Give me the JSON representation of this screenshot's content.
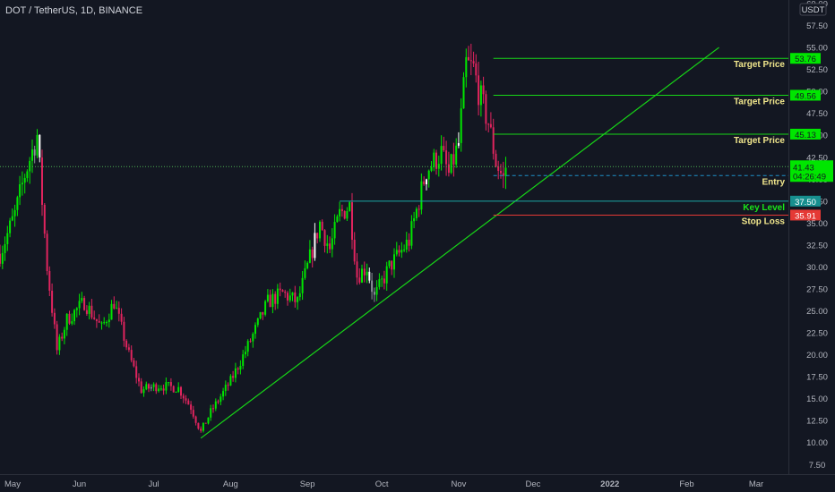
{
  "header": {
    "symbol_title": "DOT / TetherUS, 1D, BINANCE"
  },
  "colors": {
    "background": "#131722",
    "up": "#00e600",
    "down": "#e0245e",
    "white_candle": "#ffffff",
    "grey_candle": "#8a8f98",
    "axis_text": "#b2b5be",
    "target_line": "#17d617",
    "entry_line": "#1e90c8",
    "key_level_line": "#1ba5a5",
    "stop_loss_line": "#e53935",
    "trendline": "#17d617",
    "price_line": "#4caf50"
  },
  "chart_data": {
    "type": "candlestick",
    "title": "DOT / TetherUS, 1D, BINANCE",
    "y_axis_unit": "USDT",
    "ylim": [
      6.0,
      60.0
    ],
    "y_ticks": [
      7.5,
      10.0,
      12.5,
      15.0,
      17.5,
      20.0,
      22.5,
      25.0,
      27.5,
      30.0,
      32.5,
      35.0,
      37.5,
      40.0,
      42.5,
      45.0,
      47.5,
      50.0,
      52.5,
      55.0,
      57.5,
      60.0
    ],
    "y_tick_labels": [
      "7.50",
      "10.00",
      "12.50",
      "15.00",
      "17.50",
      "20.00",
      "22.50",
      "25.00",
      "27.50",
      "30.00",
      "32.50",
      "35.00",
      "37.50",
      "40.00",
      "42.50",
      "45.00",
      "47.50",
      "50.00",
      "52.50",
      "55.00",
      "57.50",
      "60.00"
    ],
    "xlim": [
      "2021-04-30",
      "2022-03-14"
    ],
    "x_ticks": [
      {
        "date": "2021-05-01",
        "label": "May"
      },
      {
        "date": "2021-06-01",
        "label": "Jun"
      },
      {
        "date": "2021-07-01",
        "label": "Jul"
      },
      {
        "date": "2021-08-01",
        "label": "Aug"
      },
      {
        "date": "2021-09-01",
        "label": "Sep"
      },
      {
        "date": "2021-10-01",
        "label": "Oct"
      },
      {
        "date": "2021-11-01",
        "label": "Nov"
      },
      {
        "date": "2021-12-01",
        "label": "Dec"
      },
      {
        "date": "2022-01-01",
        "label": "2022"
      },
      {
        "date": "2022-02-01",
        "label": "Feb"
      },
      {
        "date": "2022-03-01",
        "label": "Mar"
      }
    ],
    "price_path": [
      [
        "2021-04-30",
        31.5
      ],
      [
        "2021-05-06",
        36.0
      ],
      [
        "2021-05-10",
        40.5
      ],
      [
        "2021-05-15",
        45.0
      ],
      [
        "2021-05-19",
        30.0
      ],
      [
        "2021-05-23",
        20.5
      ],
      [
        "2021-05-27",
        24.0
      ],
      [
        "2021-06-03",
        26.0
      ],
      [
        "2021-06-10",
        23.0
      ],
      [
        "2021-06-15",
        26.0
      ],
      [
        "2021-06-21",
        20.0
      ],
      [
        "2021-06-26",
        16.0
      ],
      [
        "2021-07-03",
        16.5
      ],
      [
        "2021-07-11",
        16.2
      ],
      [
        "2021-07-16",
        14.0
      ],
      [
        "2021-07-20",
        11.2
      ],
      [
        "2021-07-24",
        13.5
      ],
      [
        "2021-08-01",
        17.0
      ],
      [
        "2021-08-08",
        21.0
      ],
      [
        "2021-08-16",
        26.0
      ],
      [
        "2021-08-22",
        27.0
      ],
      [
        "2021-08-28",
        26.0
      ],
      [
        "2021-09-02",
        31.0
      ],
      [
        "2021-09-06",
        35.0
      ],
      [
        "2021-09-10",
        32.0
      ],
      [
        "2021-09-14",
        36.0
      ],
      [
        "2021-09-18",
        37.0
      ],
      [
        "2021-09-21",
        29.0
      ],
      [
        "2021-09-25",
        30.0
      ],
      [
        "2021-09-28",
        26.5
      ],
      [
        "2021-10-04",
        30.0
      ],
      [
        "2021-10-12",
        33.0
      ],
      [
        "2021-10-19",
        41.0
      ],
      [
        "2021-10-25",
        43.0
      ],
      [
        "2021-10-28",
        40.5
      ],
      [
        "2021-11-01",
        44.0
      ],
      [
        "2021-11-04",
        53.0
      ],
      [
        "2021-11-07",
        52.5
      ],
      [
        "2021-11-10",
        49.0
      ],
      [
        "2021-11-13",
        46.5
      ],
      [
        "2021-11-16",
        42.0
      ],
      [
        "2021-11-19",
        40.0
      ],
      [
        "2021-11-20",
        41.43
      ]
    ],
    "candle_range": [
      "2021-04-30",
      "2021-11-20"
    ],
    "current_price": 41.43,
    "countdown": "04:26:49",
    "levels": [
      {
        "price": 53.76,
        "price_label": "53.76",
        "label": "Target Price",
        "kind": "target"
      },
      {
        "price": 49.56,
        "price_label": "49.56",
        "label": "Target Price",
        "kind": "target"
      },
      {
        "price": 45.13,
        "price_label": "45.13",
        "label": "Target Price",
        "kind": "target"
      },
      {
        "price": 40.41,
        "price_label": "40.41",
        "label": "Entry",
        "kind": "entry"
      },
      {
        "price": 37.5,
        "price_label": "37.50",
        "label": "Key Level",
        "kind": "key"
      },
      {
        "price": 35.91,
        "price_label": "35.91",
        "label": "Stop Loss",
        "kind": "stop"
      }
    ],
    "level_start_date": "2021-11-15",
    "key_level_start_date": "2021-09-14",
    "trendline": [
      [
        "2021-07-20",
        10.5
      ],
      [
        "2022-02-14",
        55.0
      ]
    ],
    "grid": false,
    "currency_badge": "USDT"
  }
}
